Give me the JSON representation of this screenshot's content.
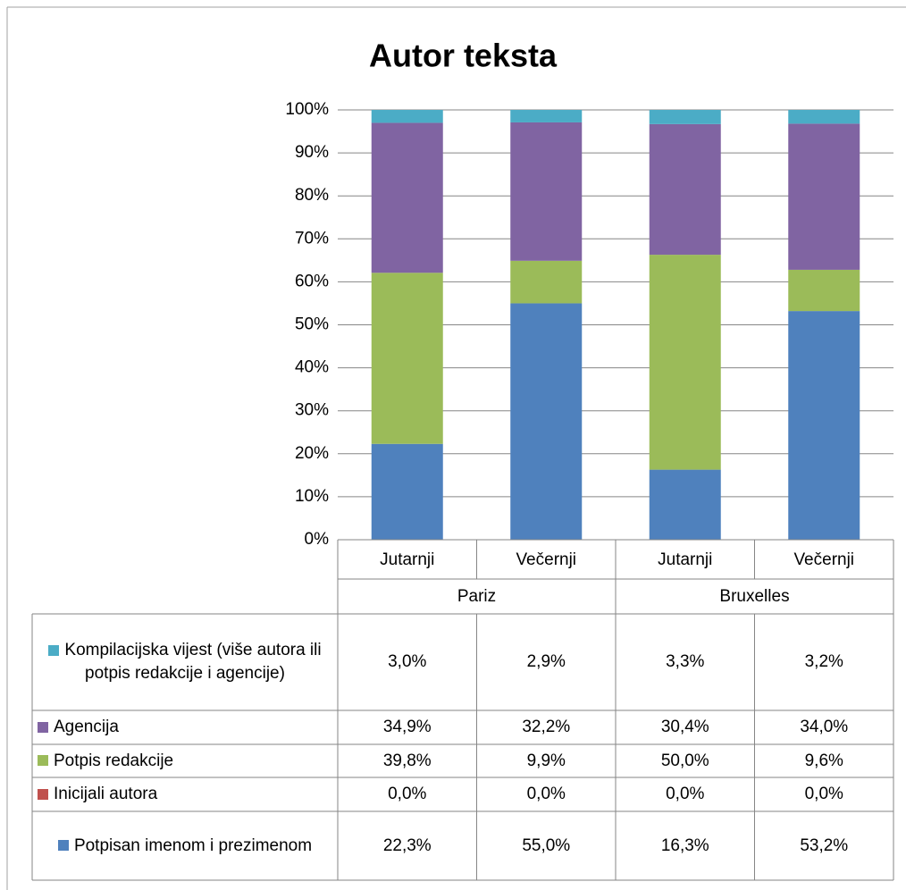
{
  "chart_data": {
    "type": "stacked_bar",
    "title": "Autor teksta",
    "categories": [
      "Jutarnji",
      "Večernji",
      "Jutarnji",
      "Večernji"
    ],
    "groups": [
      "Pariz",
      "Bruxelles"
    ],
    "ylim": [
      0,
      100
    ],
    "yticks": [
      {
        "value": 0,
        "label": "0%"
      },
      {
        "value": 10,
        "label": "10%"
      },
      {
        "value": 20,
        "label": "20%"
      },
      {
        "value": 30,
        "label": "30%"
      },
      {
        "value": 40,
        "label": "40%"
      },
      {
        "value": 50,
        "label": "50%"
      },
      {
        "value": 60,
        "label": "60%"
      },
      {
        "value": 70,
        "label": "70%"
      },
      {
        "value": 80,
        "label": "80%"
      },
      {
        "value": 90,
        "label": "90%"
      },
      {
        "value": 100,
        "label": "100%"
      }
    ],
    "grid": true,
    "series": [
      {
        "name": "Potpisan imenom i prezimenom",
        "color": "#4f81bd",
        "values": [
          22.3,
          55.0,
          16.3,
          53.2
        ],
        "value_labels": [
          "22,3%",
          "55,0%",
          "16,3%",
          "53,2%"
        ]
      },
      {
        "name": "Inicijali autora",
        "color": "#c0504d",
        "values": [
          0.0,
          0.0,
          0.0,
          0.0
        ],
        "value_labels": [
          "0,0%",
          "0,0%",
          "0,0%",
          "0,0%"
        ]
      },
      {
        "name": "Potpis redakcije",
        "color": "#9bbb59",
        "values": [
          39.8,
          9.9,
          50.0,
          9.6
        ],
        "value_labels": [
          "39,8%",
          "9,9%",
          "50,0%",
          "9,6%"
        ]
      },
      {
        "name": "Agencija",
        "color": "#8064a2",
        "values": [
          34.9,
          32.2,
          30.4,
          34.0
        ],
        "value_labels": [
          "34,9%",
          "32,2%",
          "30,4%",
          "34,0%"
        ]
      },
      {
        "name": "Kompilacijska vijest (više autora ili potpis redakcije i agencije)",
        "color": "#4bacc6",
        "values": [
          3.0,
          2.9,
          3.3,
          3.2
        ],
        "value_labels": [
          "3,0%",
          "2,9%",
          "3,3%",
          "3,2%"
        ]
      }
    ]
  }
}
